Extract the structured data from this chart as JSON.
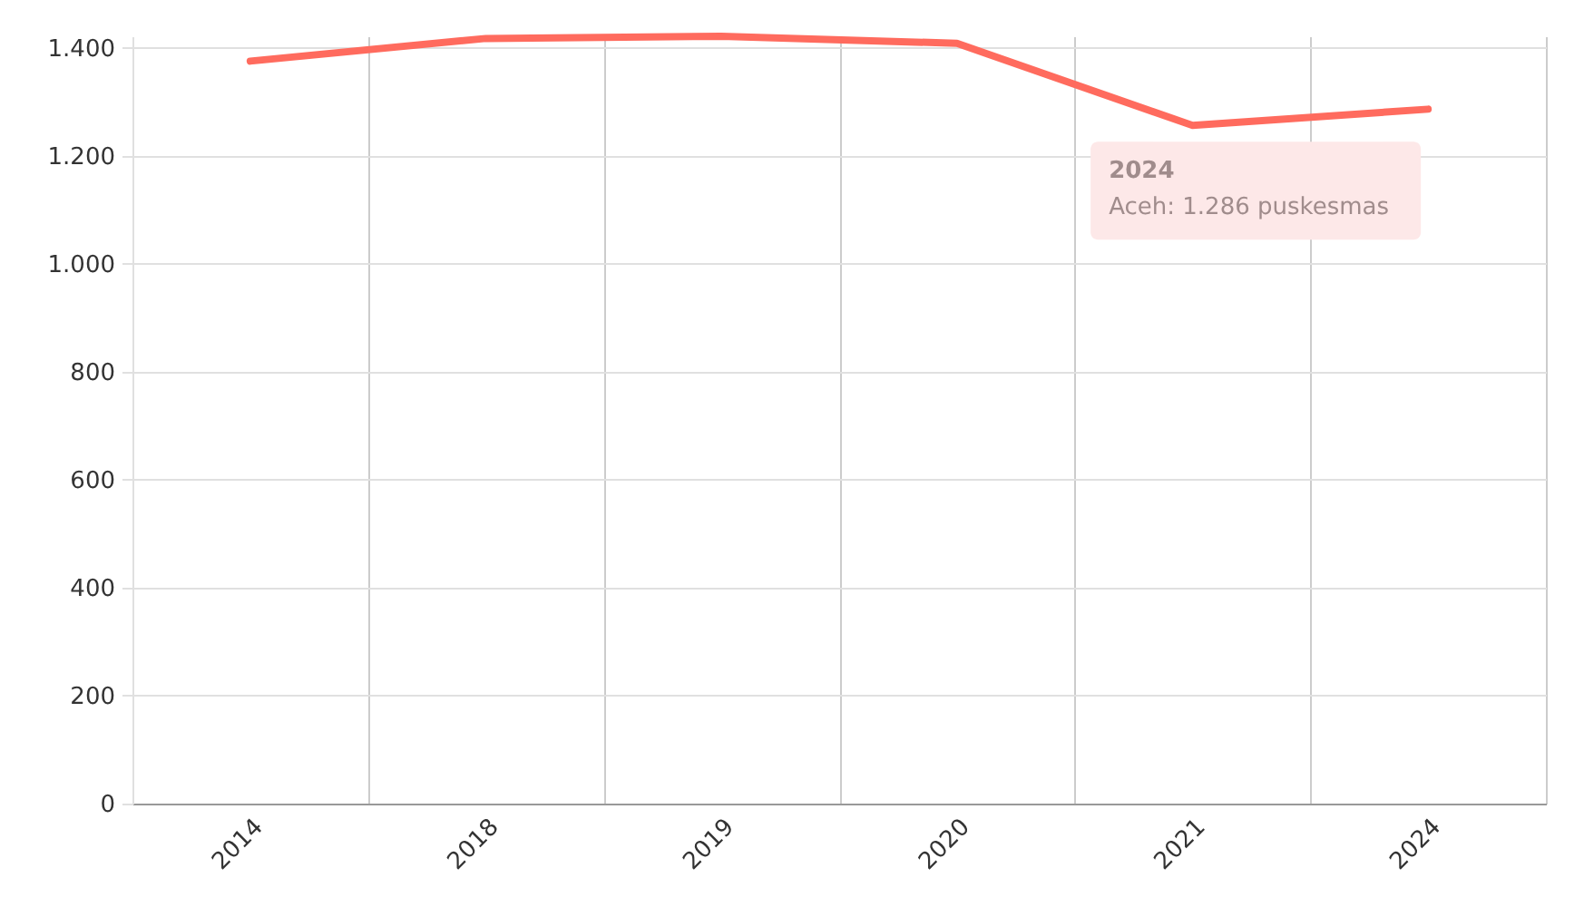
{
  "chart_data": {
    "type": "line",
    "categories": [
      "2014",
      "2018",
      "2019",
      "2020",
      "2021",
      "2024"
    ],
    "series": [
      {
        "color": "#ff6b5e",
        "values": [
          1375,
          1417,
          1421,
          1408,
          1256,
          1286
        ]
      }
    ],
    "ylim": [
      0,
      1421
    ],
    "yticks": [
      0,
      200,
      400,
      600,
      800,
      {
        "value": 1000,
        "label": "1.000"
      },
      {
        "value": 1200,
        "label": "1.200"
      },
      {
        "value": 1400,
        "label": "1.400"
      }
    ],
    "grid": true,
    "marker": "none",
    "line_style": "solid",
    "annotations": [
      {
        "text": "2024\nAceh: 1.286 puskesmas",
        "x": "2024",
        "y": 1286
      }
    ]
  }
}
